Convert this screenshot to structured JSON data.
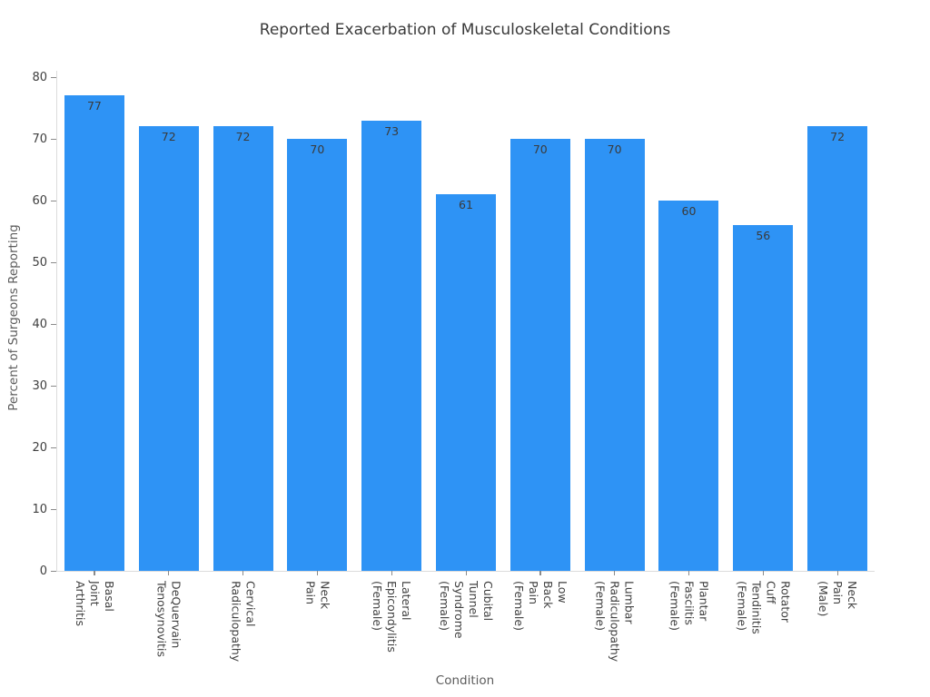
{
  "chart_data": {
    "type": "bar",
    "title": "Reported Exacerbation of Musculoskeletal Conditions",
    "xlabel": "Condition",
    "ylabel": "Percent of Surgeons Reporting",
    "ylim": [
      0,
      80
    ],
    "yticks": [
      0,
      10,
      20,
      30,
      40,
      50,
      60,
      70,
      80
    ],
    "grid": false,
    "legend_position": "none",
    "bar_color": "#2E93F5",
    "spine_color": "#DCDCDC",
    "tick_color": "#8A8A8A",
    "tick_label_color": "#404040",
    "value_label_color": "#3A3A3A",
    "categories": [
      "Basal\nJoint\nArthritis",
      "DeQuervain\nTenosynovitis",
      "Cervical\nRadiculopathy",
      "Neck\nPain",
      "Lateral\nEpicondylitis\n(Female)",
      "Cubital\nTunnel\nSyndrome\n(Female)",
      "Low\nBack\nPain\n(Female)",
      "Lumbar\nRadiculopathy\n(Female)",
      "Plantar\nFasciitis\n(Female)",
      "Rotator\nCuff\nTendinitis\n(Female)",
      "Neck\nPain\n(Male)"
    ],
    "values": [
      77,
      72,
      72,
      70,
      73,
      61,
      70,
      70,
      60,
      56,
      72
    ]
  }
}
